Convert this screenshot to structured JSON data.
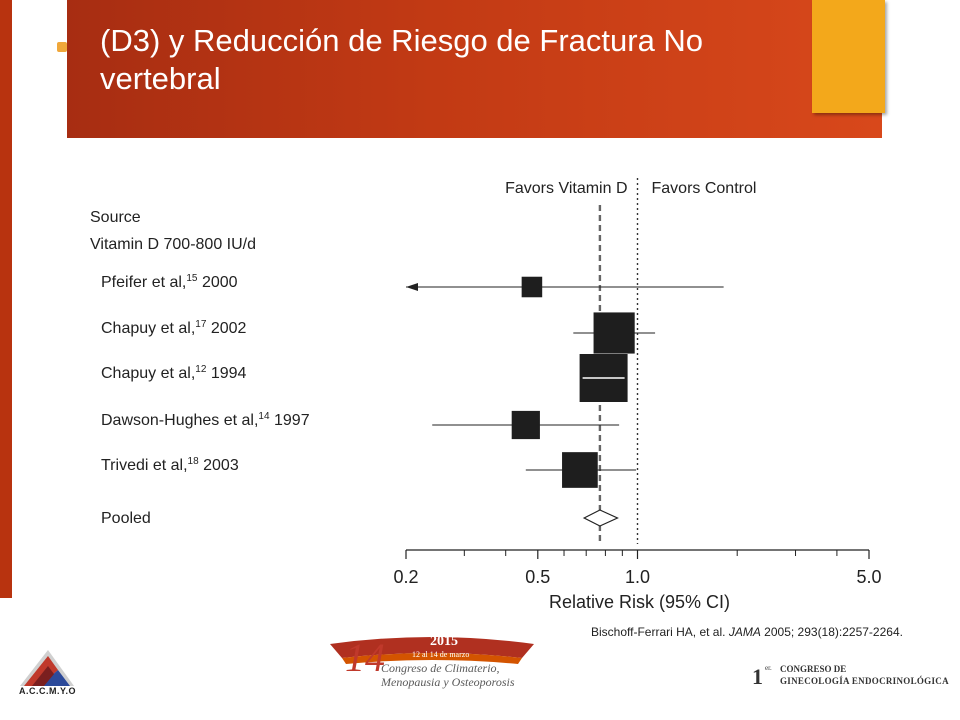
{
  "slide": {
    "title": "(D3) y Reducción de Riesgo de Fractura No vertebral",
    "citation_prefix": "Bischoff-Ferrari HA, et al. ",
    "citation_journal": "JAMA",
    "citation_suffix": " 2005; 293(18):2257-2264."
  },
  "chart_data": {
    "type": "forest",
    "column_header": "Source",
    "group_label": "Vitamin D 700-800 IU/d",
    "favors_left": "Favors Vitamin D",
    "favors_right": "Favors Control",
    "xlabel": "Relative Risk (95% CI)",
    "xscale": "log",
    "xlim": [
      0.2,
      5.0
    ],
    "xticks": [
      {
        "value": 0.2,
        "label": "0.2"
      },
      {
        "value": 0.5,
        "label": "0.5"
      },
      {
        "value": 1.0,
        "label": "1.0"
      },
      {
        "value": 5.0,
        "label": "5.0"
      }
    ],
    "minor_ticks": [
      0.3,
      0.4,
      0.6,
      0.7,
      0.8,
      0.9,
      2,
      3,
      4
    ],
    "reference_line": 1.0,
    "pooled_line": 0.77,
    "studies": [
      {
        "name": "Pfeifer et al,",
        "ref": "15",
        "year": "2000",
        "rr": 0.48,
        "lower": 0.2,
        "upper": 1.82,
        "lower_arrow": true,
        "weight": 0.12
      },
      {
        "name": "Chapuy et al,",
        "ref": "17",
        "year": "2002",
        "rr": 0.85,
        "lower": 0.64,
        "upper": 1.13,
        "weight": 0.7
      },
      {
        "name": "Chapuy et al,",
        "ref": "12",
        "year": "1994",
        "rr": 0.79,
        "lower": 0.69,
        "upper": 0.92,
        "weight": 1.0
      },
      {
        "name": "Dawson-Hughes et al,",
        "ref": "14",
        "year": "1997",
        "rr": 0.46,
        "lower": 0.24,
        "upper": 0.88,
        "weight": 0.28
      },
      {
        "name": "Trivedi et al,",
        "ref": "18",
        "year": "2003",
        "rr": 0.67,
        "lower": 0.46,
        "upper": 0.99,
        "weight": 0.5
      }
    ],
    "pooled": {
      "name": "Pooled",
      "rr": 0.77,
      "lower": 0.69,
      "upper": 0.87
    }
  },
  "logos": {
    "left_text": "A.C.C.M.Y.O",
    "mid_number": "14",
    "mid_year": "2015",
    "mid_dates": "12 al 14 de marzo",
    "mid_line1": "Congreso de Climaterio,",
    "mid_line2": "Menopausia y Osteoporosis",
    "right_number": "1",
    "right_sup": "er.",
    "right_line1": "CONGRESO DE",
    "right_line2": "GINECOLOGÍA ENDOCRINOLÓGICA"
  },
  "colors": {
    "header": "#c23a14",
    "accent_box": "#f3a81b",
    "left_bar": "#b8330f"
  }
}
